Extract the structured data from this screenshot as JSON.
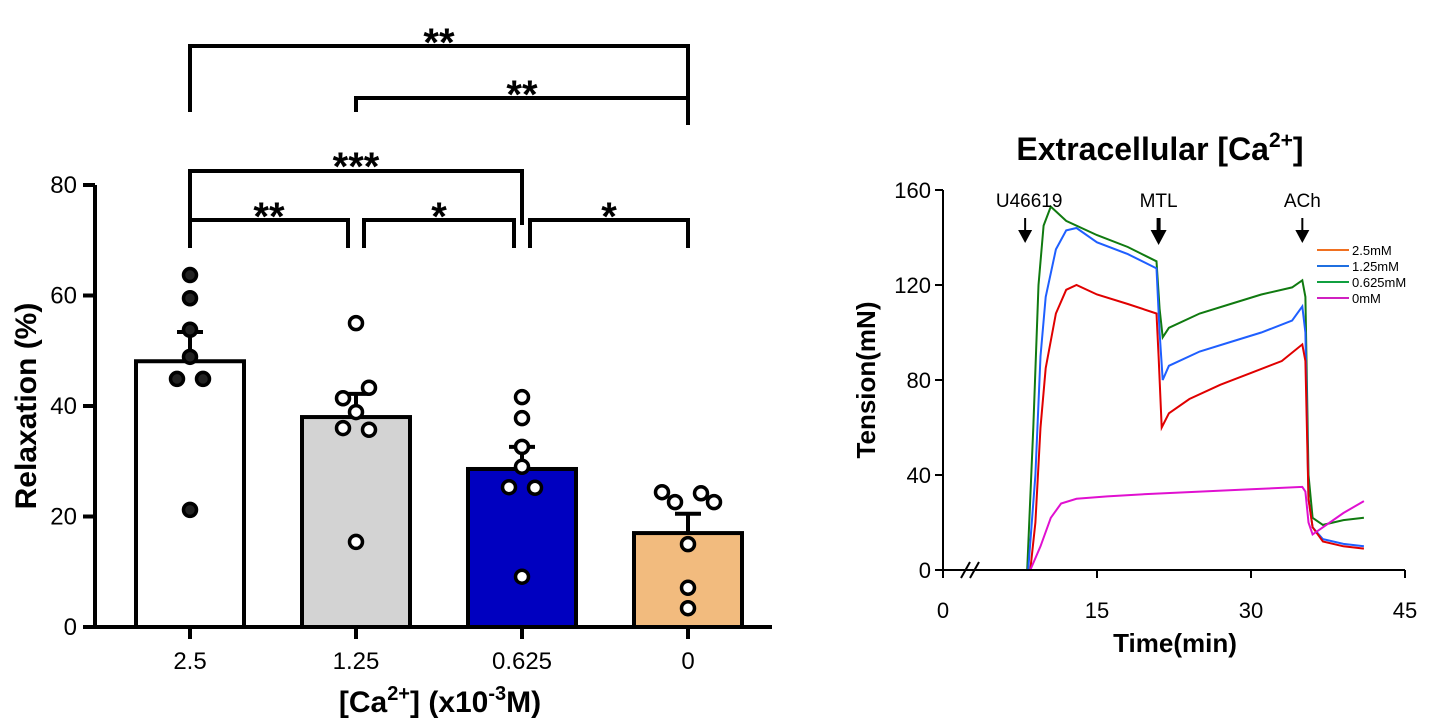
{
  "chart_data": [
    {
      "type": "bar",
      "title": "",
      "xlabel": "[Ca2+] (x10-3M)",
      "xlabel_parts": {
        "a": "[Ca",
        "sup1": "2+",
        "b": "] (x10",
        "sup2": "-3",
        "c": "M)"
      },
      "ylabel": "Relaxation (%)",
      "ylim": [
        0,
        80
      ],
      "yticks": [
        "0",
        "20",
        "40",
        "60",
        "80"
      ],
      "categories": [
        "2.5",
        "1.25",
        "0.625",
        "0"
      ],
      "values": [
        48.1,
        38.0,
        28.6,
        17.0
      ],
      "sem_upper": [
        53.4,
        42.2,
        32.6,
        20.5
      ],
      "bar_colors": [
        "#ffffff",
        "#d3d3d3",
        "#0000c0",
        "#f2bb7e"
      ],
      "points_filled": [
        true,
        false,
        false,
        false
      ],
      "points": [
        [
          63.7,
          59.5,
          53.8,
          48.9,
          44.9,
          44.9,
          21.2
        ],
        [
          55.0,
          43.3,
          41.4,
          38.9,
          36.0,
          35.7,
          15.4
        ],
        [
          41.6,
          37.8,
          32.6,
          29.0,
          25.3,
          25.2,
          9.1
        ],
        [
          24.4,
          22.6,
          24.2,
          22.6,
          15.0,
          7.1,
          3.4
        ]
      ],
      "significance": [
        {
          "from": 0,
          "to": 3,
          "label": "**"
        },
        {
          "from": 1,
          "to": 3,
          "label": "**"
        },
        {
          "from": 0,
          "to": 2,
          "label": "***"
        },
        {
          "from": 0,
          "to": 1,
          "label": "**"
        },
        {
          "from": 1,
          "to": 2,
          "label": "*"
        },
        {
          "from": 2,
          "to": 3,
          "label": "*"
        }
      ]
    },
    {
      "type": "line",
      "title": "Extracellular [Ca2+]",
      "title_parts": {
        "a": "Extracellular [Ca",
        "sup": "2+",
        "b": "]"
      },
      "xlabel": "Time(min)",
      "ylabel": "Tension(mN)",
      "xlim": [
        0,
        45
      ],
      "ylim": [
        0,
        160
      ],
      "xticks": [
        "0",
        "15",
        "30",
        "45"
      ],
      "yticks": [
        "0",
        "40",
        "80",
        "120",
        "160"
      ],
      "legend_position": "right",
      "annotations": [
        {
          "label": "U46619",
          "x": 8
        },
        {
          "label": "MTL",
          "x": 21
        },
        {
          "label": "ACh",
          "x": 35
        }
      ],
      "series": [
        {
          "name": "2.5mM",
          "legend_color": "#f07020",
          "color": "#e00000",
          "points": [
            [
              0,
              0
            ],
            [
              8.5,
              0
            ],
            [
              9,
              20
            ],
            [
              9.5,
              60
            ],
            [
              10,
              85
            ],
            [
              11,
              108
            ],
            [
              12,
              118
            ],
            [
              13,
              120
            ],
            [
              15,
              116
            ],
            [
              18,
              112
            ],
            [
              20.8,
              108
            ],
            [
              21,
              90
            ],
            [
              21.3,
              60
            ],
            [
              22,
              66
            ],
            [
              24,
              72
            ],
            [
              27,
              78
            ],
            [
              30,
              83
            ],
            [
              33,
              88
            ],
            [
              35,
              95
            ],
            [
              35.3,
              88
            ],
            [
              35.6,
              30
            ],
            [
              36,
              18
            ],
            [
              37,
              12
            ],
            [
              39,
              10
            ],
            [
              41,
              9
            ]
          ]
        },
        {
          "name": "1.25mM",
          "legend_color": "#1f6fe0",
          "color": "#1f5fff",
          "points": [
            [
              0,
              0
            ],
            [
              8.3,
              0
            ],
            [
              9,
              40
            ],
            [
              9.5,
              90
            ],
            [
              10,
              115
            ],
            [
              11,
              135
            ],
            [
              12,
              143
            ],
            [
              13,
              144
            ],
            [
              15,
              138
            ],
            [
              18,
              133
            ],
            [
              20.8,
              127
            ],
            [
              21.1,
              100
            ],
            [
              21.4,
              80
            ],
            [
              22,
              86
            ],
            [
              25,
              92
            ],
            [
              28,
              96
            ],
            [
              31,
              100
            ],
            [
              34,
              105
            ],
            [
              35,
              111
            ],
            [
              35.3,
              100
            ],
            [
              35.6,
              30
            ],
            [
              36,
              18
            ],
            [
              37,
              13
            ],
            [
              39,
              11
            ],
            [
              41,
              10
            ]
          ]
        },
        {
          "name": "0.625mM",
          "legend_color": "#10a040",
          "color": "#107a10",
          "points": [
            [
              0,
              0
            ],
            [
              8.2,
              0
            ],
            [
              8.8,
              60
            ],
            [
              9.3,
              120
            ],
            [
              9.8,
              145
            ],
            [
              10.5,
              153
            ],
            [
              12,
              147
            ],
            [
              15,
              141
            ],
            [
              18,
              136
            ],
            [
              20.8,
              130
            ],
            [
              21.1,
              110
            ],
            [
              21.4,
              98
            ],
            [
              22,
              102
            ],
            [
              25,
              108
            ],
            [
              28,
              112
            ],
            [
              31,
              116
            ],
            [
              34,
              119
            ],
            [
              35,
              122
            ],
            [
              35.3,
              115
            ],
            [
              35.6,
              40
            ],
            [
              36,
              22
            ],
            [
              37,
              19
            ],
            [
              39,
              21
            ],
            [
              41,
              22
            ]
          ]
        },
        {
          "name": "0mM",
          "legend_color": "#d020c0",
          "color": "#e010d0",
          "points": [
            [
              0,
              0
            ],
            [
              8.5,
              0
            ],
            [
              9.5,
              10
            ],
            [
              10.5,
              22
            ],
            [
              11.5,
              28
            ],
            [
              13,
              30
            ],
            [
              16,
              31
            ],
            [
              20,
              32
            ],
            [
              25,
              33
            ],
            [
              30,
              34
            ],
            [
              35,
              35
            ],
            [
              35.3,
              33
            ],
            [
              35.6,
              20
            ],
            [
              36,
              15
            ],
            [
              37,
              18
            ],
            [
              39,
              24
            ],
            [
              41,
              29
            ]
          ]
        }
      ]
    }
  ]
}
